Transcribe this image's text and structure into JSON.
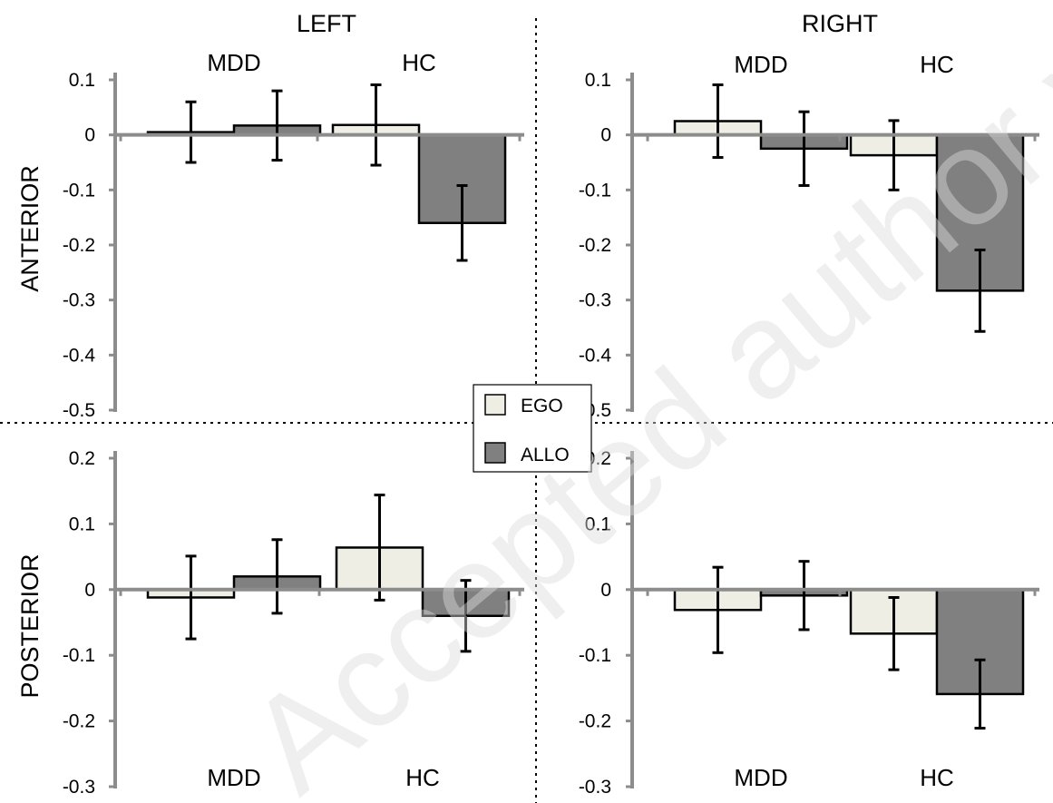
{
  "headers": {
    "left": "LEFT",
    "right": "RIGHT"
  },
  "row_labels": {
    "anterior": "ANTERIOR",
    "posterior": "POSTERIOR"
  },
  "legend": {
    "ego": "EGO",
    "allo": "ALLO"
  },
  "colors": {
    "ego": "#efeee4",
    "allo": "#808080",
    "axis": "#8c8c8c",
    "divider": "#000000"
  },
  "watermark": "Accepted author version",
  "chart_data": [
    {
      "type": "bar",
      "panel": "left-anterior",
      "categories": [
        "MDD",
        "HC"
      ],
      "series": [
        {
          "name": "EGO",
          "values": [
            0.005,
            0.018
          ],
          "errors": [
            0.055,
            0.073
          ]
        },
        {
          "name": "ALLO",
          "values": [
            0.017,
            -0.16
          ],
          "errors": [
            0.063,
            0.068
          ]
        }
      ],
      "ylim": [
        -0.5,
        0.1
      ],
      "yticks": [
        "0.1",
        "0",
        "-0.1",
        "-0.2",
        "-0.3",
        "-0.4",
        "-0.5"
      ]
    },
    {
      "type": "bar",
      "panel": "right-anterior",
      "categories": [
        "MDD",
        "HC"
      ],
      "series": [
        {
          "name": "EGO",
          "values": [
            0.025,
            -0.037
          ],
          "errors": [
            0.066,
            0.063
          ]
        },
        {
          "name": "ALLO",
          "values": [
            -0.025,
            -0.283
          ],
          "errors": [
            0.067,
            0.074
          ]
        }
      ],
      "ylim": [
        -0.5,
        0.1
      ],
      "yticks": [
        "0.1",
        "0",
        "-0.1",
        "-0.2",
        "-0.3",
        "-0.4",
        "-0.5"
      ]
    },
    {
      "type": "bar",
      "panel": "left-posterior",
      "categories": [
        "MDD",
        "HC"
      ],
      "series": [
        {
          "name": "EGO",
          "values": [
            -0.012,
            0.064
          ],
          "errors": [
            0.063,
            0.08
          ]
        },
        {
          "name": "ALLO",
          "values": [
            0.02,
            -0.04
          ],
          "errors": [
            0.056,
            0.054
          ]
        }
      ],
      "ylim": [
        -0.3,
        0.2
      ],
      "yticks": [
        "0.2",
        "0.1",
        "0",
        "-0.1",
        "-0.2",
        "-0.3"
      ]
    },
    {
      "type": "bar",
      "panel": "right-posterior",
      "categories": [
        "MDD",
        "HC"
      ],
      "series": [
        {
          "name": "EGO",
          "values": [
            -0.031,
            -0.067
          ],
          "errors": [
            0.065,
            0.055
          ]
        },
        {
          "name": "ALLO",
          "values": [
            -0.009,
            -0.159
          ],
          "errors": [
            0.052,
            0.052
          ]
        }
      ],
      "ylim": [
        -0.3,
        0.2
      ],
      "yticks": [
        "0.2",
        "0.1",
        "0",
        "-0.1",
        "-0.2",
        "-0.3"
      ]
    }
  ]
}
